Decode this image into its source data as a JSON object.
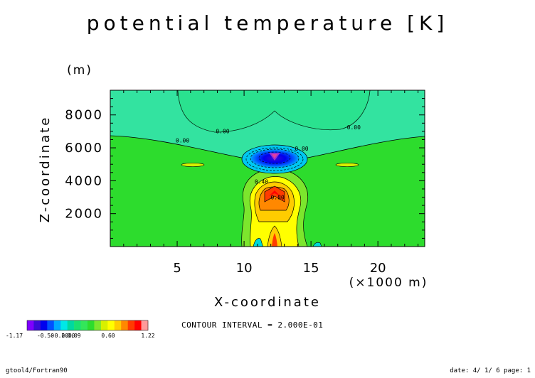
{
  "chart_data": {
    "type": "heatmap",
    "title": "potential temperature [K]",
    "xlabel": "X-coordinate",
    "x_unit": "(×1000 m)",
    "ylabel": "Z-coordinate",
    "y_unit": "(m)",
    "xlim": [
      0,
      23.5
    ],
    "ylim": [
      0,
      9500
    ],
    "x_ticks": [
      5,
      10,
      15,
      20
    ],
    "y_ticks": [
      2000,
      4000,
      6000,
      8000
    ],
    "colorbar": {
      "min_label": "-1.17",
      "labels": [
        "-0.50",
        "-0.20",
        "0.00",
        "0.09",
        "0.60"
      ],
      "max_label": "1.22",
      "colors": [
        "#7f00ff",
        "#3a0bd8",
        "#0000ee",
        "#0050ff",
        "#00a8ff",
        "#00e8e8",
        "#00d8a0",
        "#19e070",
        "#33e65a",
        "#2ddc2d",
        "#7ce62d",
        "#d8f000",
        "#ffff00",
        "#ffcc00",
        "#ff8800",
        "#ff3b00",
        "#ff0000",
        "#ff9a9a"
      ]
    },
    "contour_labels": [
      {
        "text": "0.00",
        "x": 8.4,
        "z": 6880
      },
      {
        "text": "0.00",
        "x": 18.2,
        "z": 7130
      },
      {
        "text": "0.00",
        "x": 5.4,
        "z": 6320
      },
      {
        "text": "0.00",
        "x": 14.3,
        "z": 5820
      },
      {
        "text": "0.40",
        "x": 11.3,
        "z": 3830
      },
      {
        "text": "0.80",
        "x": 12.5,
        "z": 2870
      }
    ],
    "contour_interval": "CONTOUR INTERVAL = 2.000E-01"
  },
  "footer": {
    "left": "gtool4/Fortran90",
    "right": "date: 4/ 1/ 6 page: 1"
  }
}
